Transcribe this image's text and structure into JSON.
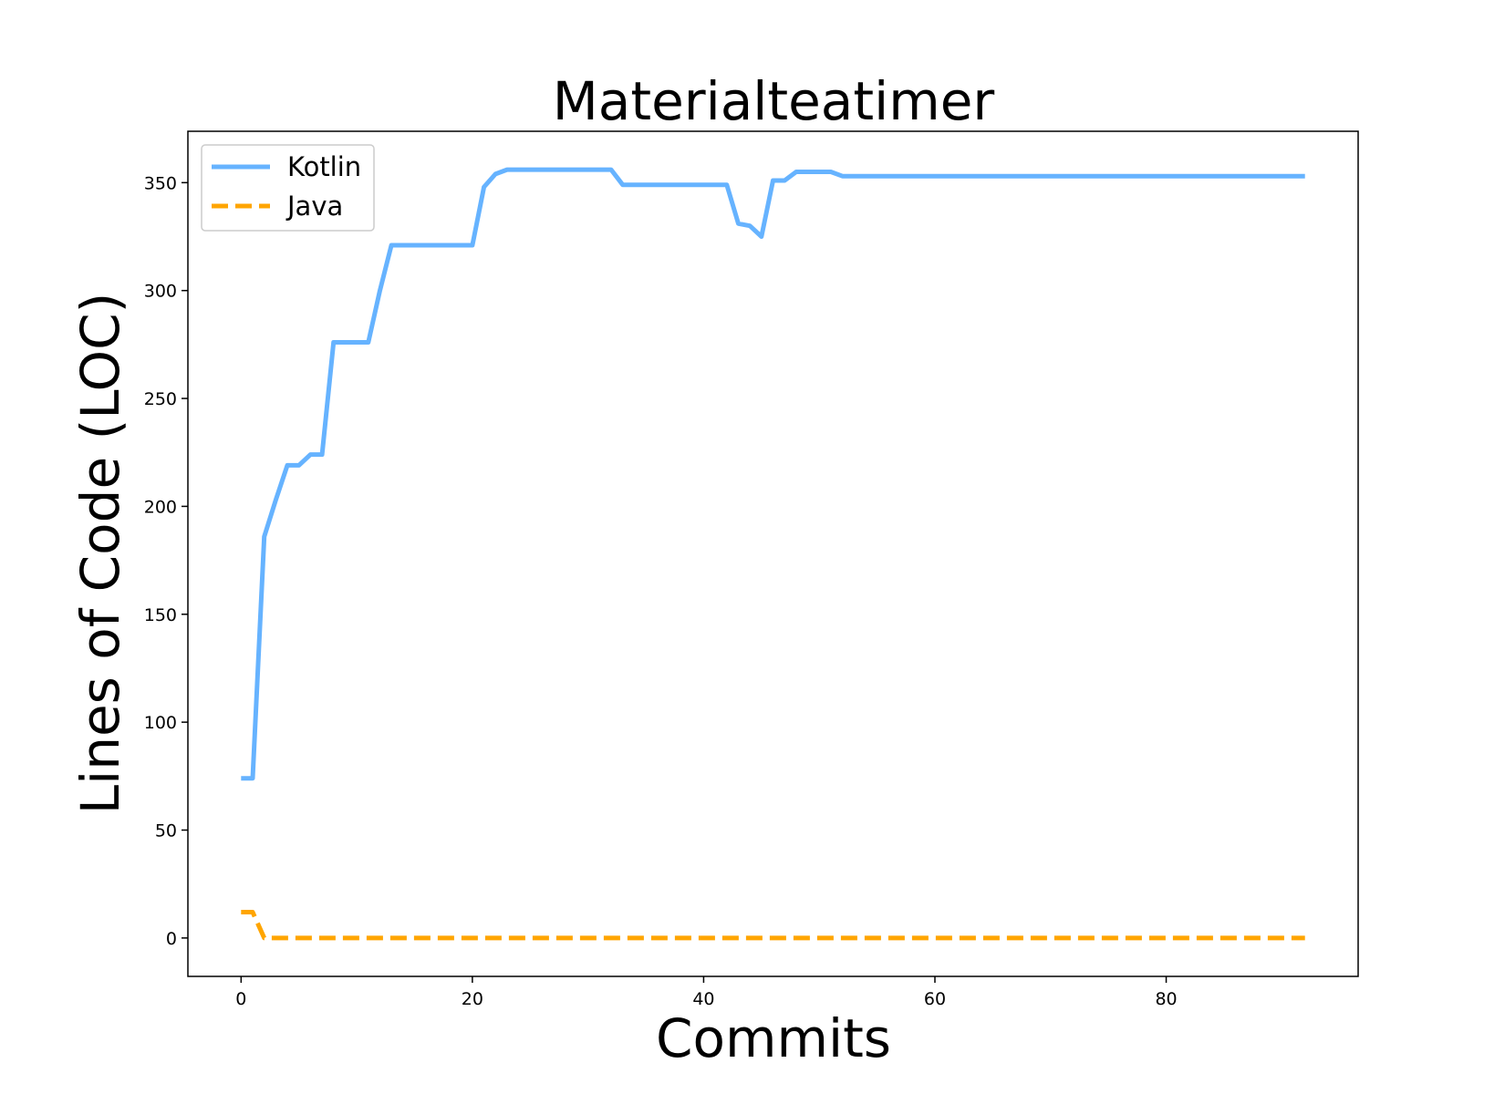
{
  "chart_data": {
    "type": "line",
    "title": "Materialteatimer",
    "xlabel": "Commits",
    "ylabel": "Lines of Code (LOC)",
    "xlim": [
      -4.6,
      96.6
    ],
    "ylim": [
      -17.8,
      373.8
    ],
    "x_ticks": [
      0,
      20,
      40,
      60,
      80
    ],
    "y_ticks": [
      0,
      50,
      100,
      150,
      200,
      250,
      300,
      350
    ],
    "grid": false,
    "legend_position": "top-left",
    "series": [
      {
        "name": "Kotlin",
        "color": "#66b3ff",
        "dash": "solid",
        "x": [
          0,
          1,
          2,
          3,
          4,
          5,
          6,
          7,
          8,
          9,
          10,
          11,
          12,
          13,
          14,
          15,
          16,
          17,
          18,
          19,
          20,
          21,
          22,
          23,
          24,
          25,
          26,
          27,
          28,
          29,
          30,
          31,
          32,
          33,
          34,
          35,
          36,
          37,
          38,
          39,
          40,
          41,
          42,
          43,
          44,
          45,
          46,
          47,
          48,
          49,
          50,
          51,
          52,
          53,
          54,
          55,
          56,
          57,
          58,
          59,
          60,
          61,
          62,
          63,
          64,
          65,
          66,
          67,
          68,
          69,
          70,
          71,
          72,
          73,
          74,
          75,
          76,
          77,
          78,
          79,
          80,
          81,
          82,
          83,
          84,
          85,
          86,
          87,
          88,
          89,
          90,
          91,
          92
        ],
        "y": [
          74,
          74,
          186,
          203,
          219,
          219,
          224,
          224,
          276,
          276,
          276,
          276,
          300,
          321,
          321,
          321,
          321,
          321,
          321,
          321,
          321,
          348,
          354,
          356,
          356,
          356,
          356,
          356,
          356,
          356,
          356,
          356,
          356,
          349,
          349,
          349,
          349,
          349,
          349,
          349,
          349,
          349,
          349,
          331,
          330,
          325,
          351,
          351,
          355,
          355,
          355,
          355,
          353,
          353,
          353,
          353,
          353,
          353,
          353,
          353,
          353,
          353,
          353,
          353,
          353,
          353,
          353,
          353,
          353,
          353,
          353,
          353,
          353,
          353,
          353,
          353,
          353,
          353,
          353,
          353,
          353,
          353,
          353,
          353,
          353,
          353,
          353,
          353,
          353,
          353,
          353,
          353,
          353
        ]
      },
      {
        "name": "Java",
        "color": "#ffa500",
        "dash": "dashed",
        "x": [
          0,
          1,
          2,
          3,
          10,
          20,
          30,
          40,
          50,
          60,
          70,
          80,
          92
        ],
        "y": [
          12,
          12,
          0,
          0,
          0,
          0,
          0,
          0,
          0,
          0,
          0,
          0,
          0
        ]
      }
    ]
  }
}
